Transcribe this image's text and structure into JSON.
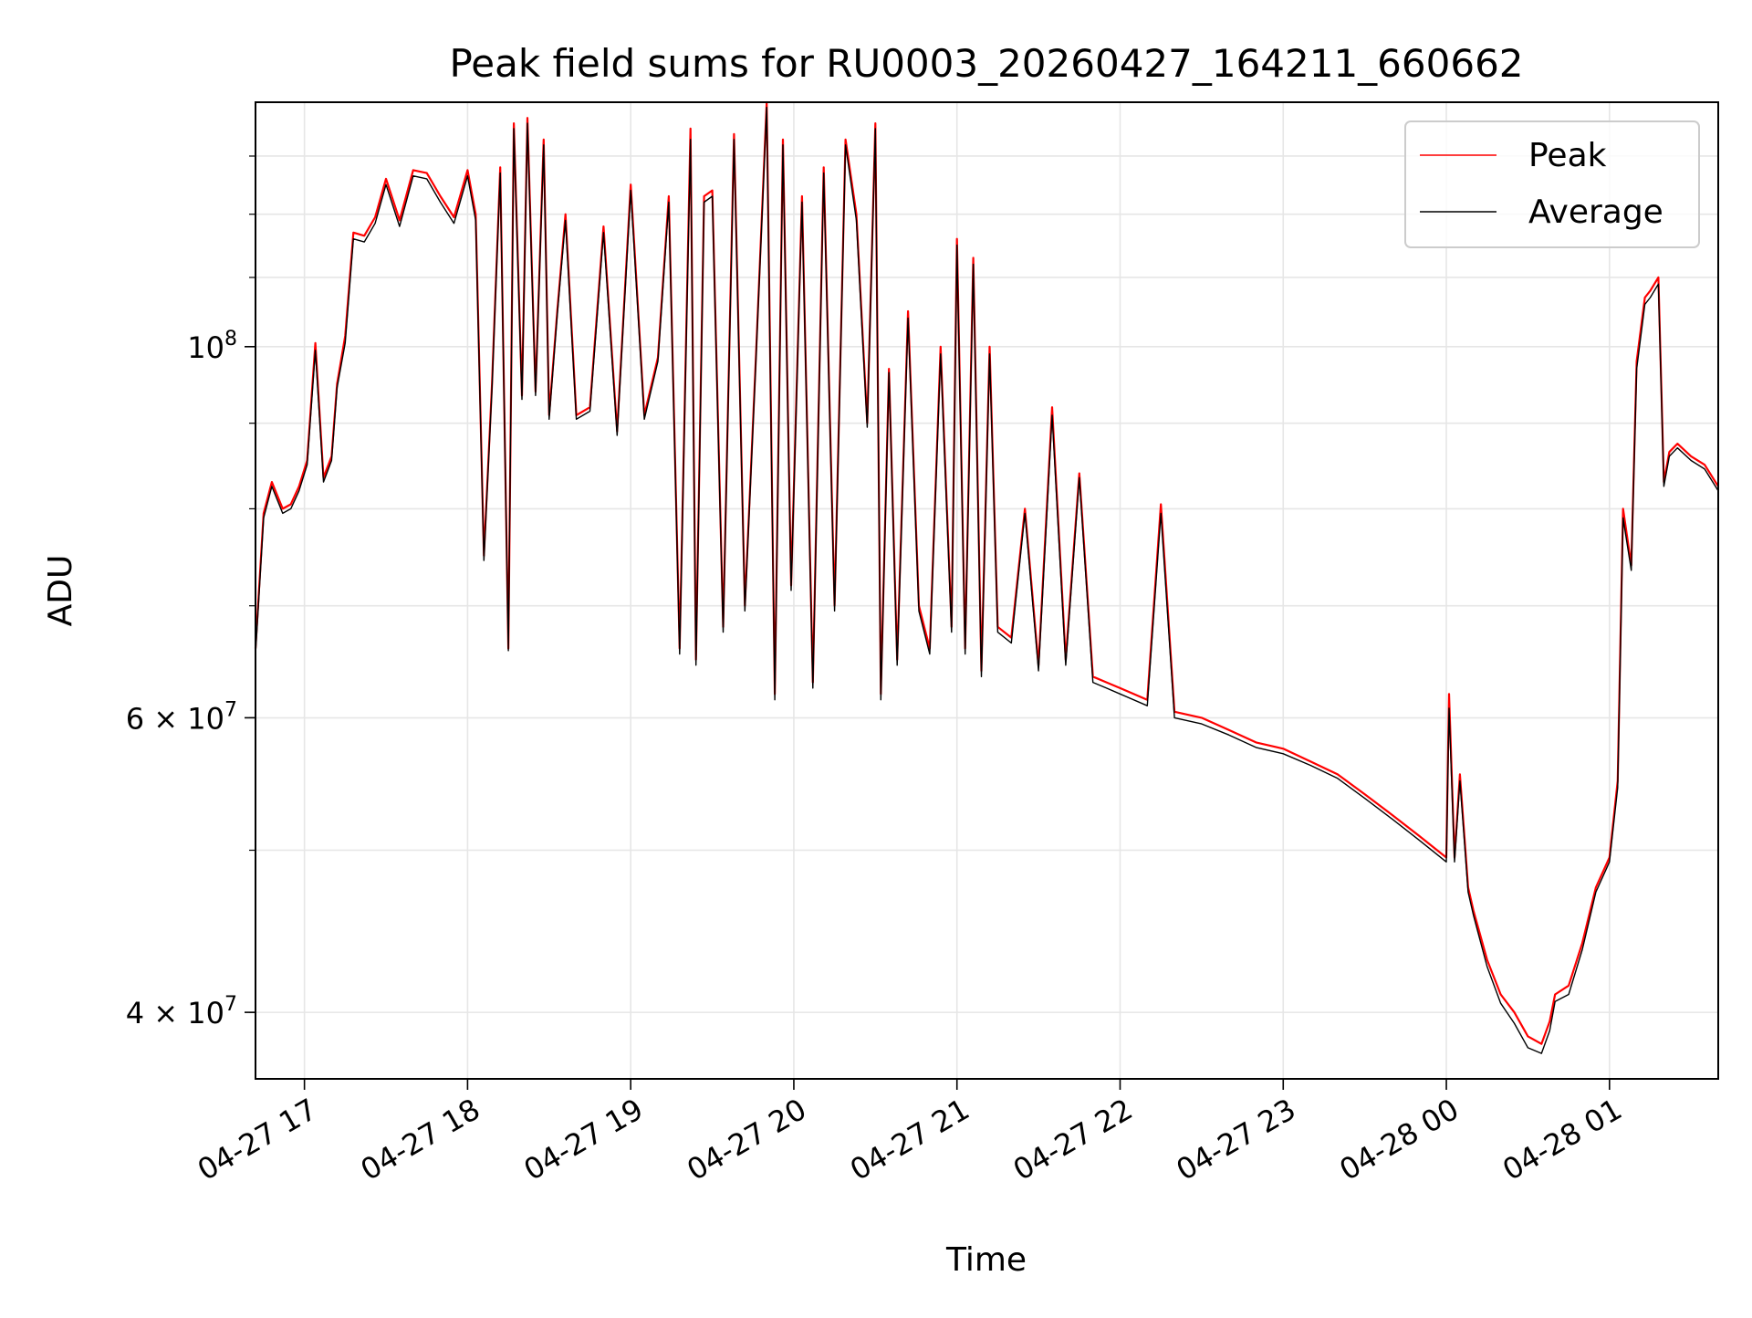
{
  "chart_data": {
    "type": "line",
    "title": "Peak field sums for RU0003_20260427_164211_660662",
    "xlabel": "Time",
    "ylabel": "ADU",
    "y_scale": "log",
    "ylim": [
      36500000,
      140000000
    ],
    "xlim": [
      "2026-04-27 16:42",
      "2026-04-28 01:40"
    ],
    "x_ticks": [
      "2026-04-27 17:00",
      "2026-04-27 18:00",
      "2026-04-27 19:00",
      "2026-04-27 20:00",
      "2026-04-27 21:00",
      "2026-04-27 22:00",
      "2026-04-27 23:00",
      "2026-04-28 00:00",
      "2026-04-28 01:00"
    ],
    "x_tick_labels": [
      "04-27 17",
      "04-27 18",
      "04-27 19",
      "04-27 20",
      "04-27 21",
      "04-27 22",
      "04-27 23",
      "04-28 00",
      "04-28 01"
    ],
    "y_tick_labels": [
      {
        "value": 100000000,
        "base": "10",
        "exp": "8"
      },
      {
        "value": 60000000,
        "base": "6 × 10",
        "exp": "7"
      },
      {
        "value": 40000000,
        "base": "4 × 10",
        "exp": "7"
      }
    ],
    "grid": true,
    "legend_position": "top-right",
    "series": [
      {
        "name": "Peak",
        "color": "#ff0000",
        "x": [
          "2026-04-27 16:42",
          "2026-04-27 16:45",
          "2026-04-27 16:48",
          "2026-04-27 16:52",
          "2026-04-27 16:55",
          "2026-04-27 16:58",
          "2026-04-27 17:01",
          "2026-04-27 17:04",
          "2026-04-27 17:07",
          "2026-04-27 17:10",
          "2026-04-27 17:12",
          "2026-04-27 17:15",
          "2026-04-27 17:18",
          "2026-04-27 17:22",
          "2026-04-27 17:26",
          "2026-04-27 17:30",
          "2026-04-27 17:35",
          "2026-04-27 17:40",
          "2026-04-27 17:45",
          "2026-04-27 17:50",
          "2026-04-27 17:55",
          "2026-04-27 18:00",
          "2026-04-27 18:03",
          "2026-04-27 18:06",
          "2026-04-27 18:09",
          "2026-04-27 18:12",
          "2026-04-27 18:15",
          "2026-04-27 18:17",
          "2026-04-27 18:20",
          "2026-04-27 18:22",
          "2026-04-27 18:25",
          "2026-04-27 18:28",
          "2026-04-27 18:30",
          "2026-04-27 18:33",
          "2026-04-27 18:36",
          "2026-04-27 18:40",
          "2026-04-27 18:45",
          "2026-04-27 18:50",
          "2026-04-27 18:55",
          "2026-04-27 19:00",
          "2026-04-27 19:05",
          "2026-04-27 19:10",
          "2026-04-27 19:14",
          "2026-04-27 19:18",
          "2026-04-27 19:22",
          "2026-04-27 19:24",
          "2026-04-27 19:27",
          "2026-04-27 19:30",
          "2026-04-27 19:34",
          "2026-04-27 19:38",
          "2026-04-27 19:42",
          "2026-04-27 19:46",
          "2026-04-27 19:50",
          "2026-04-27 19:53",
          "2026-04-27 19:56",
          "2026-04-27 19:59",
          "2026-04-27 20:03",
          "2026-04-27 20:07",
          "2026-04-27 20:11",
          "2026-04-27 20:15",
          "2026-04-27 20:19",
          "2026-04-27 20:23",
          "2026-04-27 20:27",
          "2026-04-27 20:30",
          "2026-04-27 20:32",
          "2026-04-27 20:35",
          "2026-04-27 20:38",
          "2026-04-27 20:42",
          "2026-04-27 20:46",
          "2026-04-27 20:50",
          "2026-04-27 20:54",
          "2026-04-27 20:58",
          "2026-04-27 21:00",
          "2026-04-27 21:03",
          "2026-04-27 21:06",
          "2026-04-27 21:09",
          "2026-04-27 21:12",
          "2026-04-27 21:15",
          "2026-04-27 21:20",
          "2026-04-27 21:25",
          "2026-04-27 21:30",
          "2026-04-27 21:35",
          "2026-04-27 21:40",
          "2026-04-27 21:45",
          "2026-04-27 21:50",
          "2026-04-27 21:55",
          "2026-04-27 22:00",
          "2026-04-27 22:10",
          "2026-04-27 22:15",
          "2026-04-27 22:20",
          "2026-04-27 22:30",
          "2026-04-27 22:40",
          "2026-04-27 22:50",
          "2026-04-27 23:00",
          "2026-04-27 23:10",
          "2026-04-27 23:20",
          "2026-04-27 23:30",
          "2026-04-27 23:40",
          "2026-04-27 23:50",
          "2026-04-28 00:00",
          "2026-04-28 00:01",
          "2026-04-28 00:03",
          "2026-04-28 00:05",
          "2026-04-28 00:08",
          "2026-04-28 00:10",
          "2026-04-28 00:15",
          "2026-04-28 00:20",
          "2026-04-28 00:25",
          "2026-04-28 00:30",
          "2026-04-28 00:35",
          "2026-04-28 00:38",
          "2026-04-28 00:40",
          "2026-04-28 00:45",
          "2026-04-28 00:50",
          "2026-04-28 00:55",
          "2026-04-28 01:00",
          "2026-04-28 01:03",
          "2026-04-28 01:05",
          "2026-04-28 01:08",
          "2026-04-28 01:10",
          "2026-04-28 01:13",
          "2026-04-28 01:15",
          "2026-04-28 01:18",
          "2026-04-28 01:20",
          "2026-04-28 01:22",
          "2026-04-28 01:25",
          "2026-04-28 01:30",
          "2026-04-28 01:35",
          "2026-04-28 01:40"
        ],
        "values": [
          66000000,
          79500000,
          83000000,
          80000000,
          80500000,
          82500000,
          85500000,
          100500000,
          83500000,
          86000000,
          95000000,
          101500000,
          117000000,
          116500000,
          119500000,
          126000000,
          119000000,
          127500000,
          127000000,
          123000000,
          119500000,
          127500000,
          120000000,
          75000000,
          95000000,
          128000000,
          66000000,
          136000000,
          93500000,
          137000000,
          94000000,
          133000000,
          91000000,
          105000000,
          120000000,
          91000000,
          92000000,
          118000000,
          89000000,
          125000000,
          91000000,
          98500000,
          123000000,
          66000000,
          135000000,
          65000000,
          123000000,
          124000000,
          68000000,
          134000000,
          70000000,
          98000000,
          140000000,
          62000000,
          133000000,
          72000000,
          123000000,
          63000000,
          128000000,
          70000000,
          133000000,
          120000000,
          90000000,
          136000000,
          62000000,
          97000000,
          65000000,
          105000000,
          70000000,
          66000000,
          100000000,
          68000000,
          116000000,
          66000000,
          113000000,
          64000000,
          100000000,
          68000000,
          67000000,
          80000000,
          64500000,
          92000000,
          65000000,
          84000000,
          63500000,
          63000000,
          62500000,
          61500000,
          80500000,
          60500000,
          60000000,
          59000000,
          58000000,
          57500000,
          56500000,
          55500000,
          54000000,
          52500000,
          51000000,
          49500000,
          62000000,
          49500000,
          55500000,
          47500000,
          46000000,
          43000000,
          41000000,
          40000000,
          38700000,
          38300000,
          39500000,
          41000000,
          41500000,
          44000000,
          47500000,
          49500000,
          55000000,
          80000000,
          74000000,
          98000000,
          107000000,
          108000000,
          110000000,
          83000000,
          86500000,
          87500000,
          86000000,
          85000000,
          82500000
        ]
      },
      {
        "name": "Average",
        "color": "#000000",
        "x": [
          "2026-04-27 16:42",
          "2026-04-27 16:45",
          "2026-04-27 16:48",
          "2026-04-27 16:52",
          "2026-04-27 16:55",
          "2026-04-27 16:58",
          "2026-04-27 17:01",
          "2026-04-27 17:04",
          "2026-04-27 17:07",
          "2026-04-27 17:10",
          "2026-04-27 17:12",
          "2026-04-27 17:15",
          "2026-04-27 17:18",
          "2026-04-27 17:22",
          "2026-04-27 17:26",
          "2026-04-27 17:30",
          "2026-04-27 17:35",
          "2026-04-27 17:40",
          "2026-04-27 17:45",
          "2026-04-27 17:50",
          "2026-04-27 17:55",
          "2026-04-27 18:00",
          "2026-04-27 18:03",
          "2026-04-27 18:06",
          "2026-04-27 18:09",
          "2026-04-27 18:12",
          "2026-04-27 18:15",
          "2026-04-27 18:17",
          "2026-04-27 18:20",
          "2026-04-27 18:22",
          "2026-04-27 18:25",
          "2026-04-27 18:28",
          "2026-04-27 18:30",
          "2026-04-27 18:33",
          "2026-04-27 18:36",
          "2026-04-27 18:40",
          "2026-04-27 18:45",
          "2026-04-27 18:50",
          "2026-04-27 18:55",
          "2026-04-27 19:00",
          "2026-04-27 19:05",
          "2026-04-27 19:10",
          "2026-04-27 19:14",
          "2026-04-27 19:18",
          "2026-04-27 19:22",
          "2026-04-27 19:24",
          "2026-04-27 19:27",
          "2026-04-27 19:30",
          "2026-04-27 19:34",
          "2026-04-27 19:38",
          "2026-04-27 19:42",
          "2026-04-27 19:46",
          "2026-04-27 19:50",
          "2026-04-27 19:53",
          "2026-04-27 19:56",
          "2026-04-27 19:59",
          "2026-04-27 20:03",
          "2026-04-27 20:07",
          "2026-04-27 20:11",
          "2026-04-27 20:15",
          "2026-04-27 20:19",
          "2026-04-27 20:23",
          "2026-04-27 20:27",
          "2026-04-27 20:30",
          "2026-04-27 20:32",
          "2026-04-27 20:35",
          "2026-04-27 20:38",
          "2026-04-27 20:42",
          "2026-04-27 20:46",
          "2026-04-27 20:50",
          "2026-04-27 20:54",
          "2026-04-27 20:58",
          "2026-04-27 21:00",
          "2026-04-27 21:03",
          "2026-04-27 21:06",
          "2026-04-27 21:09",
          "2026-04-27 21:12",
          "2026-04-27 21:15",
          "2026-04-27 21:20",
          "2026-04-27 21:25",
          "2026-04-27 21:30",
          "2026-04-27 21:35",
          "2026-04-27 21:40",
          "2026-04-27 21:45",
          "2026-04-27 21:50",
          "2026-04-27 21:55",
          "2026-04-27 22:00",
          "2026-04-27 22:10",
          "2026-04-27 22:15",
          "2026-04-27 22:20",
          "2026-04-27 22:30",
          "2026-04-27 22:40",
          "2026-04-27 22:50",
          "2026-04-27 23:00",
          "2026-04-27 23:10",
          "2026-04-27 23:20",
          "2026-04-27 23:30",
          "2026-04-27 23:40",
          "2026-04-27 23:50",
          "2026-04-28 00:00",
          "2026-04-28 00:01",
          "2026-04-28 00:03",
          "2026-04-28 00:05",
          "2026-04-28 00:08",
          "2026-04-28 00:10",
          "2026-04-28 00:15",
          "2026-04-28 00:20",
          "2026-04-28 00:25",
          "2026-04-28 00:30",
          "2026-04-28 00:35",
          "2026-04-28 00:38",
          "2026-04-28 00:40",
          "2026-04-28 00:45",
          "2026-04-28 00:50",
          "2026-04-28 00:55",
          "2026-04-28 01:00",
          "2026-04-28 01:03",
          "2026-04-28 01:05",
          "2026-04-28 01:08",
          "2026-04-28 01:10",
          "2026-04-28 01:13",
          "2026-04-28 01:15",
          "2026-04-28 01:18",
          "2026-04-28 01:20",
          "2026-04-28 01:22",
          "2026-04-28 01:25",
          "2026-04-28 01:30",
          "2026-04-28 01:35",
          "2026-04-28 01:40"
        ],
        "values": [
          65500000,
          79000000,
          82500000,
          79500000,
          80000000,
          82000000,
          85000000,
          99500000,
          83000000,
          85500000,
          94500000,
          100500000,
          116000000,
          115500000,
          118500000,
          125000000,
          118000000,
          126500000,
          126000000,
          122000000,
          118500000,
          126500000,
          119000000,
          74500000,
          94500000,
          127000000,
          65800000,
          135000000,
          93000000,
          136000000,
          93500000,
          132000000,
          90500000,
          104500000,
          119000000,
          90500000,
          91500000,
          117000000,
          88500000,
          124000000,
          90500000,
          98000000,
          122000000,
          65500000,
          133000000,
          64500000,
          122000000,
          123000000,
          67500000,
          133000000,
          69500000,
          97500000,
          139000000,
          61500000,
          132000000,
          71500000,
          122000000,
          62500000,
          127000000,
          69500000,
          132000000,
          119000000,
          89500000,
          135000000,
          61500000,
          96500000,
          64500000,
          104000000,
          69500000,
          65500000,
          99000000,
          67500000,
          115000000,
          65500000,
          112000000,
          63500000,
          99000000,
          67500000,
          66500000,
          79500000,
          64000000,
          91000000,
          64500000,
          83500000,
          63000000,
          62500000,
          62000000,
          61000000,
          79500000,
          60000000,
          59500000,
          58600000,
          57600000,
          57100000,
          56200000,
          55200000,
          53700000,
          52200000,
          50700000,
          49200000,
          60800000,
          49200000,
          55000000,
          47200000,
          45700000,
          42600000,
          40500000,
          39400000,
          38100000,
          37800000,
          39000000,
          40600000,
          41000000,
          43600000,
          47200000,
          49200000,
          54500000,
          79000000,
          73500000,
          97000000,
          106000000,
          107000000,
          109000000,
          82500000,
          86000000,
          87000000,
          85500000,
          84500000,
          82000000
        ]
      }
    ]
  }
}
